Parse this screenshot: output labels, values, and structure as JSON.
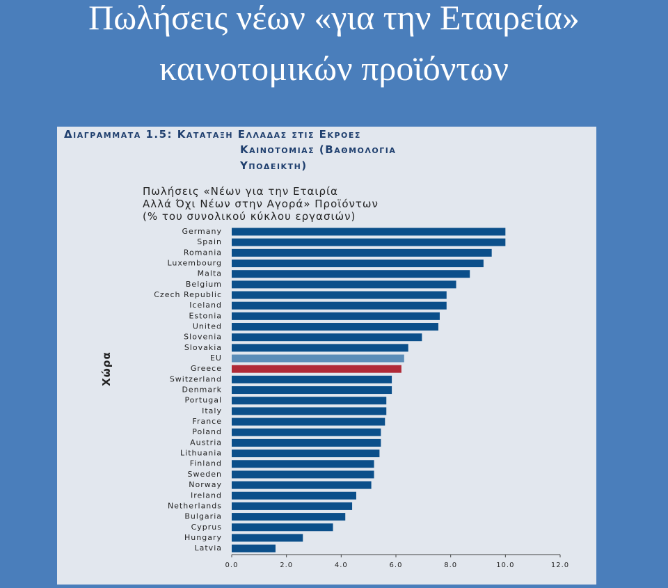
{
  "slide_title": [
    "Πωλήσεις νέων «για την Εταιρεία»",
    "καινοτομικών προϊόντων"
  ],
  "chart_data": {
    "type": "barh",
    "figure_caption": [
      "Διαγραμματα 1.5: Καταταξη Ελλαδας στις Εκροες",
      "Καινοτομιας (Βαθμολογια",
      "Υποδεικτη)"
    ],
    "title": [
      "Πωλήσεις «Νέων για την Εταιρία",
      "Αλλά Όχι Νέων στην Αγορά» Προϊόντων",
      "(% του συνολικού κύκλου εργασιών)"
    ],
    "y_label": "Χώρα",
    "categories": [
      "Germany",
      "Spain",
      "Romania",
      "Luxembourg",
      "Malta",
      "Belgium",
      "Czech Republic",
      "Iceland",
      "Estonia",
      "United",
      "Slovenia",
      "Slovakia",
      "EU",
      "Greece",
      "Switzerland",
      "Denmark",
      "Portugal",
      "Italy",
      "France",
      "Poland",
      "Austria",
      "Lithuania",
      "Finland",
      "Sweden",
      "Norway",
      "Ireland",
      "Netherlands",
      "Bulgaria",
      "Cyprus",
      "Hungary",
      "Latvia"
    ],
    "values": [
      10.0,
      10.0,
      9.5,
      9.2,
      8.7,
      8.2,
      7.85,
      7.85,
      7.6,
      7.55,
      6.95,
      6.45,
      6.3,
      6.2,
      5.85,
      5.85,
      5.65,
      5.65,
      5.6,
      5.45,
      5.45,
      5.4,
      5.2,
      5.2,
      5.1,
      4.55,
      4.4,
      4.15,
      3.7,
      2.6,
      1.6
    ],
    "color": "#0b4f8a",
    "highlight_colors": {
      "EU": "#5b8db8",
      "Greece": "#b02a37"
    },
    "xlim": [
      0,
      12
    ],
    "xticks": [
      {
        "value": 0,
        "label": "0.0"
      },
      {
        "value": 2,
        "label": "2.0"
      },
      {
        "value": 4,
        "label": "4.0"
      },
      {
        "value": 6,
        "label": "6.0"
      },
      {
        "value": 8,
        "label": "8.0"
      },
      {
        "value": 10,
        "label": "10.0"
      },
      {
        "value": 12,
        "label": "12.0"
      }
    ]
  }
}
